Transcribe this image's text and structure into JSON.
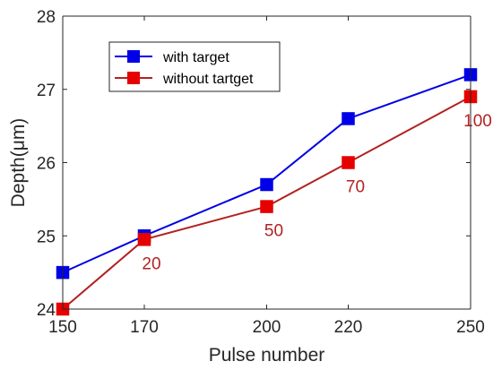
{
  "chart_data": {
    "type": "line",
    "xlabel": "Pulse number",
    "ylabel": "Depth(μm)",
    "xlim": [
      150,
      250
    ],
    "ylim": [
      24,
      28
    ],
    "x_ticks": [
      150,
      170,
      200,
      220,
      250
    ],
    "y_ticks": [
      24,
      25,
      26,
      27,
      28
    ],
    "grid": false,
    "legend_position": "top-left",
    "series": [
      {
        "name": "with target",
        "color": "#0000e6",
        "marker": "square",
        "x": [
          150,
          170,
          200,
          220,
          250
        ],
        "y": [
          24.5,
          25.0,
          25.7,
          26.6,
          27.2
        ]
      },
      {
        "name": "without tartget",
        "color": "#b22222",
        "marker_color": "#e60000",
        "marker": "square",
        "x": [
          150,
          170,
          200,
          220,
          250
        ],
        "y": [
          24.0,
          24.95,
          25.4,
          26.0,
          26.9
        ]
      }
    ],
    "annotations": [
      {
        "text": "20",
        "x": 170,
        "y": 24.95
      },
      {
        "text": "50",
        "x": 200,
        "y": 25.4
      },
      {
        "text": "70",
        "x": 220,
        "y": 26.0
      },
      {
        "text": "100",
        "x": 250,
        "y": 26.9
      }
    ],
    "annotation_color": "#b22222"
  }
}
